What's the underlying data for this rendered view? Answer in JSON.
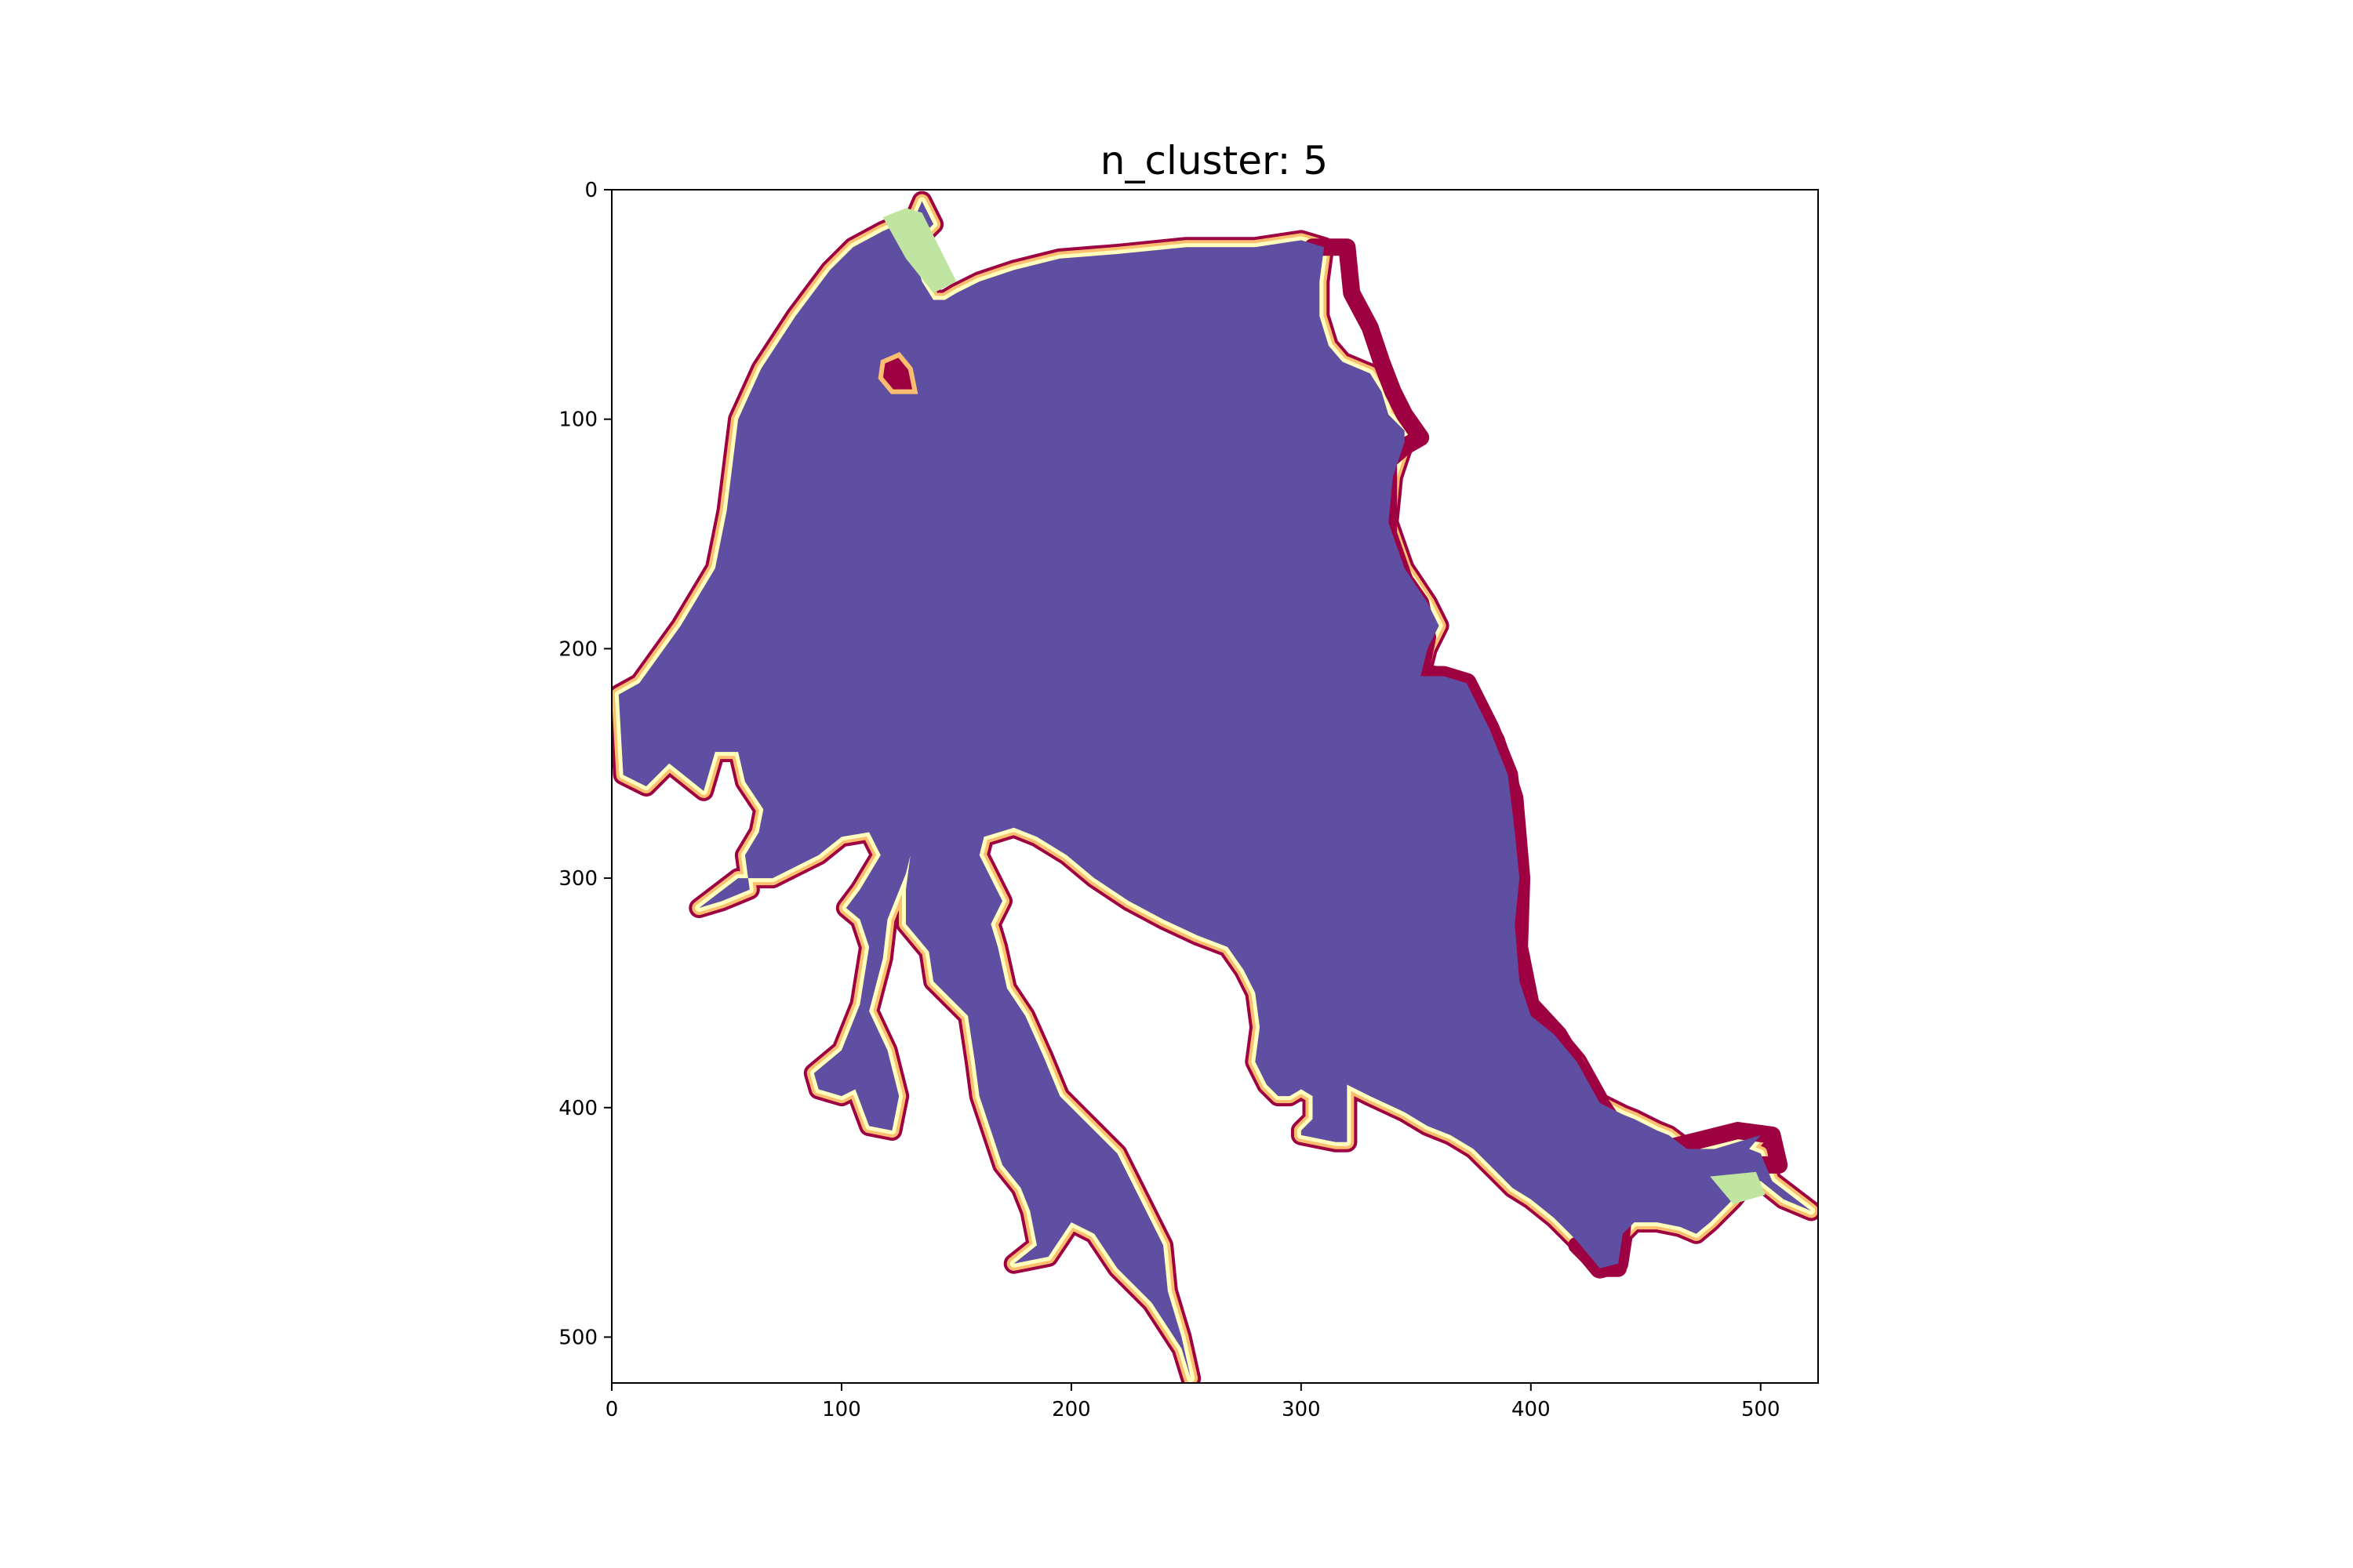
{
  "chart_data": {
    "type": "heatmap",
    "title": "n_cluster: 5",
    "xlabel": "",
    "ylabel": "",
    "xlim": [
      0,
      525
    ],
    "ylim": [
      520,
      0
    ],
    "x_ticks": [
      "0",
      "100",
      "200",
      "300",
      "400",
      "500"
    ],
    "y_ticks": [
      "0",
      "100",
      "200",
      "300",
      "400",
      "500"
    ],
    "grid": false,
    "legend": "none",
    "colormap": "Spectral",
    "clusters": [
      {
        "id": 0,
        "color": "#9e0142",
        "role": "outer shoreline ring"
      },
      {
        "id": 1,
        "color": "#fdbe6f",
        "role": "shoreline ring"
      },
      {
        "id": 2,
        "color": "#ffffbe",
        "role": "shoreline ring"
      },
      {
        "id": 3,
        "color": "#bfe5a0",
        "role": "shallow patches"
      },
      {
        "id": 4,
        "color": "#5e4fa2",
        "role": "open water"
      }
    ],
    "lake_outline": [
      [
        135,
        5
      ],
      [
        132,
        12
      ],
      [
        118,
        18
      ],
      [
        105,
        25
      ],
      [
        95,
        35
      ],
      [
        80,
        55
      ],
      [
        65,
        78
      ],
      [
        55,
        100
      ],
      [
        50,
        140
      ],
      [
        45,
        165
      ],
      [
        30,
        190
      ],
      [
        12,
        215
      ],
      [
        3,
        220
      ],
      [
        5,
        255
      ],
      [
        15,
        260
      ],
      [
        25,
        250
      ],
      [
        40,
        262
      ],
      [
        45,
        245
      ],
      [
        55,
        245
      ],
      [
        58,
        258
      ],
      [
        66,
        270
      ],
      [
        64,
        280
      ],
      [
        58,
        290
      ],
      [
        60,
        305
      ],
      [
        48,
        310
      ],
      [
        38,
        313
      ],
      [
        55,
        300
      ],
      [
        70,
        300
      ],
      [
        90,
        290
      ],
      [
        100,
        282
      ],
      [
        112,
        280
      ],
      [
        117,
        290
      ],
      [
        108,
        305
      ],
      [
        102,
        313
      ],
      [
        108,
        318
      ],
      [
        112,
        330
      ],
      [
        108,
        355
      ],
      [
        100,
        375
      ],
      [
        88,
        385
      ],
      [
        90,
        392
      ],
      [
        100,
        395
      ],
      [
        106,
        392
      ],
      [
        112,
        408
      ],
      [
        122,
        410
      ],
      [
        125,
        395
      ],
      [
        120,
        375
      ],
      [
        112,
        358
      ],
      [
        118,
        335
      ],
      [
        120,
        318
      ],
      [
        128,
        298
      ],
      [
        130,
        290
      ],
      [
        128,
        305
      ],
      [
        128,
        320
      ],
      [
        138,
        332
      ],
      [
        140,
        345
      ],
      [
        155,
        360
      ],
      [
        158,
        380
      ],
      [
        160,
        395
      ],
      [
        165,
        410
      ],
      [
        170,
        425
      ],
      [
        178,
        435
      ],
      [
        182,
        445
      ],
      [
        185,
        460
      ],
      [
        175,
        468
      ],
      [
        190,
        465
      ],
      [
        200,
        450
      ],
      [
        210,
        455
      ],
      [
        220,
        470
      ],
      [
        235,
        485
      ],
      [
        248,
        505
      ],
      [
        252,
        518
      ],
      [
        248,
        500
      ],
      [
        242,
        480
      ],
      [
        240,
        460
      ],
      [
        230,
        440
      ],
      [
        220,
        420
      ],
      [
        205,
        405
      ],
      [
        195,
        395
      ],
      [
        188,
        378
      ],
      [
        180,
        360
      ],
      [
        172,
        348
      ],
      [
        168,
        330
      ],
      [
        165,
        320
      ],
      [
        170,
        310
      ],
      [
        165,
        300
      ],
      [
        160,
        290
      ],
      [
        162,
        282
      ],
      [
        175,
        278
      ],
      [
        185,
        282
      ],
      [
        198,
        290
      ],
      [
        210,
        300
      ],
      [
        225,
        310
      ],
      [
        240,
        318
      ],
      [
        255,
        325
      ],
      [
        268,
        330
      ],
      [
        275,
        340
      ],
      [
        280,
        350
      ],
      [
        282,
        365
      ],
      [
        280,
        380
      ],
      [
        285,
        390
      ],
      [
        290,
        395
      ],
      [
        295,
        395
      ],
      [
        300,
        392
      ],
      [
        305,
        395
      ],
      [
        305,
        405
      ],
      [
        300,
        410
      ],
      [
        300,
        412
      ],
      [
        315,
        415
      ],
      [
        320,
        415
      ],
      [
        320,
        405
      ],
      [
        320,
        390
      ],
      [
        330,
        395
      ],
      [
        345,
        402
      ],
      [
        355,
        408
      ],
      [
        365,
        412
      ],
      [
        375,
        418
      ],
      [
        382,
        425
      ],
      [
        392,
        435
      ],
      [
        400,
        440
      ],
      [
        410,
        448
      ],
      [
        420,
        458
      ],
      [
        430,
        470
      ],
      [
        438,
        468
      ],
      [
        440,
        455
      ],
      [
        445,
        450
      ],
      [
        455,
        450
      ],
      [
        465,
        452
      ],
      [
        472,
        455
      ],
      [
        478,
        450
      ],
      [
        488,
        440
      ],
      [
        492,
        435
      ],
      [
        500,
        432
      ],
      [
        510,
        440
      ],
      [
        522,
        445
      ],
      [
        505,
        432
      ],
      [
        500,
        420
      ],
      [
        495,
        418
      ],
      [
        500,
        412
      ],
      [
        480,
        418
      ],
      [
        468,
        418
      ],
      [
        460,
        412
      ],
      [
        455,
        410
      ],
      [
        445,
        405
      ],
      [
        440,
        403
      ],
      [
        430,
        398
      ],
      [
        420,
        380
      ],
      [
        410,
        368
      ],
      [
        400,
        360
      ],
      [
        395,
        345
      ],
      [
        393,
        320
      ],
      [
        395,
        300
      ],
      [
        393,
        280
      ],
      [
        390,
        255
      ],
      [
        382,
        235
      ],
      [
        372,
        215
      ],
      [
        362,
        212
      ],
      [
        352,
        212
      ],
      [
        355,
        200
      ],
      [
        360,
        190
      ],
      [
        355,
        180
      ],
      [
        345,
        165
      ],
      [
        338,
        145
      ],
      [
        340,
        125
      ],
      [
        345,
        110
      ],
      [
        345,
        105
      ],
      [
        338,
        98
      ],
      [
        335,
        88
      ],
      [
        330,
        80
      ],
      [
        318,
        75
      ],
      [
        312,
        68
      ],
      [
        308,
        55
      ],
      [
        308,
        40
      ],
      [
        310,
        25
      ],
      [
        300,
        22
      ],
      [
        280,
        25
      ],
      [
        250,
        25
      ],
      [
        220,
        28
      ],
      [
        195,
        30
      ],
      [
        175,
        35
      ],
      [
        160,
        40
      ],
      [
        150,
        45
      ],
      [
        145,
        48
      ],
      [
        140,
        48
      ],
      [
        135,
        40
      ],
      [
        132,
        30
      ],
      [
        130,
        25
      ],
      [
        135,
        20
      ],
      [
        140,
        15
      ]
    ],
    "shore_bands": [
      {
        "cluster": 0,
        "points": [
          [
            305,
            25
          ],
          [
            320,
            25
          ],
          [
            322,
            45
          ],
          [
            330,
            60
          ],
          [
            335,
            75
          ],
          [
            340,
            88
          ],
          [
            345,
            98
          ],
          [
            352,
            108
          ],
          [
            345,
            112
          ],
          [
            338,
            118
          ],
          [
            338,
            150
          ],
          [
            345,
            170
          ],
          [
            352,
            180
          ],
          [
            355,
            195
          ],
          [
            352,
            210
          ],
          [
            362,
            212
          ],
          [
            372,
            215
          ],
          [
            385,
            240
          ],
          [
            393,
            265
          ],
          [
            396,
            300
          ],
          [
            395,
            330
          ],
          [
            400,
            355
          ],
          [
            412,
            368
          ],
          [
            425,
            390
          ],
          [
            435,
            405
          ],
          [
            448,
            412
          ],
          [
            458,
            418
          ],
          [
            470,
            415
          ],
          [
            490,
            410
          ],
          [
            505,
            412
          ],
          [
            508,
            425
          ],
          [
            498,
            425
          ],
          [
            490,
            420
          ],
          [
            475,
            425
          ],
          [
            470,
            430
          ],
          [
            480,
            442
          ],
          [
            470,
            450
          ],
          [
            460,
            445
          ],
          [
            445,
            440
          ],
          [
            440,
            450
          ],
          [
            438,
            470
          ],
          [
            430,
            470
          ],
          [
            420,
            460
          ]
        ]
      }
    ],
    "islands": [
      [
        [
          118,
          75
        ],
        [
          125,
          72
        ],
        [
          130,
          78
        ],
        [
          132,
          88
        ],
        [
          122,
          88
        ],
        [
          117,
          82
        ]
      ]
    ]
  }
}
